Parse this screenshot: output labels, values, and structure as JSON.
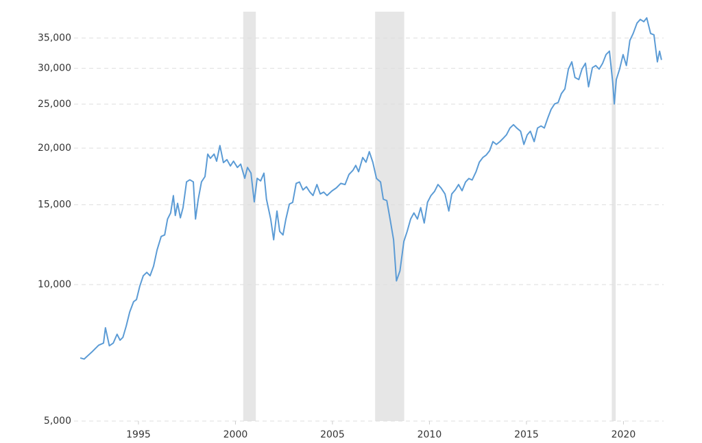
{
  "chart_data": {
    "type": "line",
    "log_scale_y": true,
    "grid": true,
    "color": "#5b9bd5",
    "shade_color": "#e6e6e6",
    "shaded_ranges": [
      [
        2000.4,
        2001.05
      ],
      [
        2007.2,
        2008.7
      ],
      [
        2019.4,
        2019.6
      ]
    ],
    "xlim": [
      1991.68,
      2022.07
    ],
    "xticks": [
      1995,
      2000,
      2005,
      2010,
      2015,
      2020
    ],
    "ylim": [
      5000,
      40000
    ],
    "yticks": [
      {
        "value": 5000,
        "label": "5,000"
      },
      {
        "value": 10000,
        "label": "10,000"
      },
      {
        "value": 15000,
        "label": "15,000"
      },
      {
        "value": 20000,
        "label": "20,000"
      },
      {
        "value": 25000,
        "label": "25,000"
      },
      {
        "value": 30000,
        "label": "30,000"
      },
      {
        "value": 35000,
        "label": "35,000"
      }
    ],
    "x": [
      1992.0,
      1992.2,
      1992.6,
      1992.95,
      1993.2,
      1993.3,
      1993.5,
      1993.7,
      1993.9,
      1994.05,
      1994.2,
      1994.37,
      1994.55,
      1994.75,
      1994.9,
      1995.07,
      1995.25,
      1995.43,
      1995.6,
      1995.78,
      1995.96,
      1996.17,
      1996.35,
      1996.5,
      1996.66,
      1996.8,
      1996.9,
      1997.02,
      1997.16,
      1997.3,
      1997.48,
      1997.65,
      1997.83,
      1997.94,
      1998.08,
      1998.25,
      1998.43,
      1998.57,
      1998.71,
      1998.9,
      1999.03,
      1999.2,
      1999.38,
      1999.56,
      1999.74,
      1999.9,
      2000.1,
      2000.27,
      2000.48,
      2000.62,
      2000.8,
      2000.97,
      2001.12,
      2001.3,
      2001.47,
      2001.6,
      2001.82,
      2001.97,
      2002.14,
      2002.28,
      2002.45,
      2002.6,
      2002.78,
      2002.95,
      2003.13,
      2003.3,
      2003.48,
      2003.66,
      2003.84,
      2004.0,
      2004.2,
      2004.37,
      2004.55,
      2004.72,
      2004.97,
      2005.2,
      2005.43,
      2005.65,
      2005.85,
      2006.06,
      2006.2,
      2006.35,
      2006.56,
      2006.73,
      2006.9,
      2007.08,
      2007.27,
      2007.48,
      2007.62,
      2007.8,
      2007.97,
      2008.15,
      2008.3,
      2008.48,
      2008.68,
      2008.85,
      2009.03,
      2009.2,
      2009.38,
      2009.55,
      2009.73,
      2009.9,
      2010.08,
      2010.26,
      2010.44,
      2010.6,
      2010.8,
      2011.0,
      2011.15,
      2011.33,
      2011.5,
      2011.68,
      2011.86,
      2012.03,
      2012.2,
      2012.4,
      2012.57,
      2012.75,
      2012.92,
      2013.1,
      2013.27,
      2013.45,
      2013.63,
      2013.8,
      2013.97,
      2014.15,
      2014.33,
      2014.5,
      2014.7,
      2014.87,
      2015.04,
      2015.2,
      2015.4,
      2015.57,
      2015.75,
      2015.92,
      2016.1,
      2016.27,
      2016.45,
      2016.63,
      2016.8,
      2016.98,
      2017.16,
      2017.34,
      2017.5,
      2017.7,
      2017.86,
      2018.04,
      2018.2,
      2018.4,
      2018.57,
      2018.75,
      2018.93,
      2019.1,
      2019.28,
      2019.45,
      2019.53,
      2019.63,
      2019.8,
      2019.98,
      2020.15,
      2020.33,
      2020.5,
      2020.7,
      2020.87,
      2021.05,
      2021.2,
      2021.4,
      2021.57,
      2021.75,
      2021.86,
      2021.96
    ],
    "values": [
      6890,
      6850,
      7100,
      7350,
      7430,
      8030,
      7330,
      7430,
      7770,
      7540,
      7650,
      8100,
      8700,
      9170,
      9270,
      9920,
      10460,
      10640,
      10460,
      10980,
      11920,
      12770,
      12870,
      13950,
      14390,
      15710,
      14200,
      15110,
      14040,
      14780,
      16850,
      17030,
      16850,
      13950,
      15400,
      16850,
      17310,
      19400,
      18990,
      19400,
      18720,
      20260,
      18580,
      18860,
      18270,
      18720,
      18130,
      18440,
      17160,
      18130,
      17620,
      15220,
      17160,
      16930,
      17610,
      15430,
      13940,
      12560,
      14530,
      13100,
      12870,
      13940,
      15050,
      15180,
      16720,
      16840,
      16170,
      16440,
      15990,
      15720,
      16620,
      15850,
      15990,
      15720,
      16090,
      16340,
      16720,
      16620,
      17490,
      17870,
      18320,
      17740,
      19070,
      18620,
      19640,
      18620,
      17140,
      16840,
      15430,
      15320,
      13940,
      12560,
      10190,
      10720,
      12450,
      13100,
      13950,
      14390,
      13950,
      14780,
      13670,
      15190,
      15720,
      16050,
      16620,
      16330,
      15850,
      14530,
      15850,
      16180,
      16620,
      16110,
      16840,
      17140,
      17010,
      17740,
      18620,
      19070,
      19300,
      19740,
      20670,
      20380,
      20670,
      21020,
      21400,
      22150,
      22530,
      22150,
      21790,
      20380,
      21400,
      21790,
      20670,
      22150,
      22380,
      22150,
      23310,
      24350,
      25030,
      25200,
      26380,
      27020,
      29870,
      31000,
      28630,
      28330,
      29870,
      30780,
      27310,
      30090,
      30420,
      29870,
      30780,
      32160,
      32730,
      27800,
      25030,
      28330,
      29870,
      32160,
      30420,
      34570,
      35810,
      37740,
      38450,
      38020,
      38750,
      35810,
      35560,
      31000,
      32730,
      31300
    ]
  }
}
